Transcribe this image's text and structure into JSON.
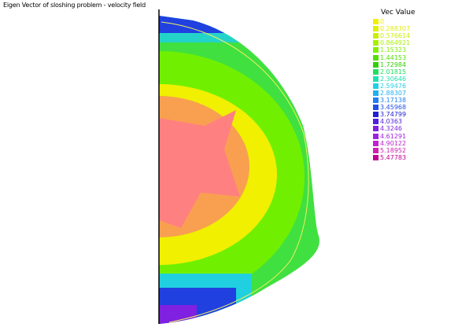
{
  "title": "Eigen  Vector of sloshing problem - velocity field",
  "legend": {
    "title": "Vec Value",
    "entries": [
      {
        "value": "0",
        "color": "#f0f000"
      },
      {
        "value": "0.288307",
        "color": "#e0f000"
      },
      {
        "value": "0.576614",
        "color": "#c8f000"
      },
      {
        "value": "0.864921",
        "color": "#a8f000"
      },
      {
        "value": "1.15323",
        "color": "#80f000"
      },
      {
        "value": "1.44153",
        "color": "#50e000"
      },
      {
        "value": "1.72984",
        "color": "#30d000"
      },
      {
        "value": "2.01815",
        "color": "#20e060"
      },
      {
        "value": "2.30646",
        "color": "#20e0b0"
      },
      {
        "value": "2.59476",
        "color": "#20d0e8"
      },
      {
        "value": "2.88307",
        "color": "#20b0f0"
      },
      {
        "value": "3.17138",
        "color": "#2080f0"
      },
      {
        "value": "3.45968",
        "color": "#2050e8"
      },
      {
        "value": "3.74799",
        "color": "#2020d0"
      },
      {
        "value": "4.0363",
        "color": "#5020e0"
      },
      {
        "value": "4.3246",
        "color": "#8020e0"
      },
      {
        "value": "4.61291",
        "color": "#a020e0"
      },
      {
        "value": "4.90122",
        "color": "#c020d0"
      },
      {
        "value": "5.18952",
        "color": "#d020b0"
      },
      {
        "value": "5.47783",
        "color": "#c00090"
      }
    ]
  },
  "field_colors": {
    "core": "#ff8080",
    "inner": "#f8a050",
    "mid": "#f0f000",
    "outer": "#70f000",
    "edge": "#40e040",
    "cyan": "#20d0e0",
    "blue": "#2040e0",
    "violet": "#8020e0",
    "boundary": "#f0f060"
  }
}
